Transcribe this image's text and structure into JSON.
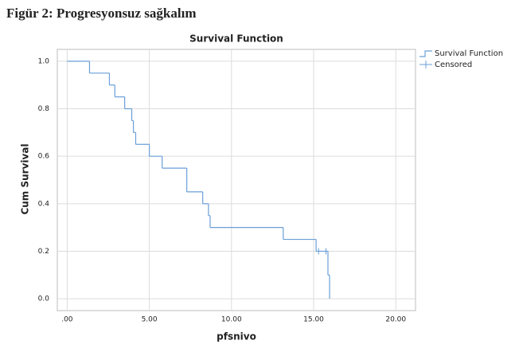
{
  "header": {
    "title": "Figür 2: Progresyonsuz sağkalım"
  },
  "chart_data": {
    "type": "step",
    "title": "Survival Function",
    "x_label": "pfsnivo",
    "y_label": "Cum Survival",
    "series": [
      {
        "name": "Survival Function",
        "color": "#6a9fd8",
        "x": [
          0,
          1.36,
          2.57,
          2.9,
          3.5,
          3.93,
          4.03,
          4.17,
          5.0,
          5.78,
          7.28,
          8.25,
          8.6,
          8.7,
          13.15,
          15.15,
          15.87,
          15.97
        ],
        "values": [
          1.0,
          0.95,
          0.9,
          0.85,
          0.8,
          0.75,
          0.7,
          0.65,
          0.6,
          0.55,
          0.45,
          0.4,
          0.35,
          0.3,
          0.25,
          0.2,
          0.1,
          0.0
        ]
      },
      {
        "name": "Censored",
        "color": "#6a9fd8",
        "x": [
          15.3,
          15.75
        ],
        "values": [
          0.2,
          0.2
        ]
      }
    ],
    "xlim": [
      -0.6,
      21.2
    ],
    "ylim": [
      -0.05,
      1.05
    ],
    "xticks": [
      {
        "value": 0,
        "label": ".00"
      },
      {
        "value": 5,
        "label": "5.00"
      },
      {
        "value": 10,
        "label": "10.00"
      },
      {
        "value": 15,
        "label": "15.00"
      },
      {
        "value": 20,
        "label": "20.00"
      }
    ],
    "yticks": [
      {
        "value": 0,
        "label": "0.0"
      },
      {
        "value": 0.2,
        "label": "0.2"
      },
      {
        "value": 0.4,
        "label": "0.4"
      },
      {
        "value": 0.6,
        "label": "0.6"
      },
      {
        "value": 0.8,
        "label": "0.8"
      },
      {
        "value": 1.0,
        "label": "1.0"
      }
    ],
    "grid": true,
    "legend": "outside-top-right"
  }
}
